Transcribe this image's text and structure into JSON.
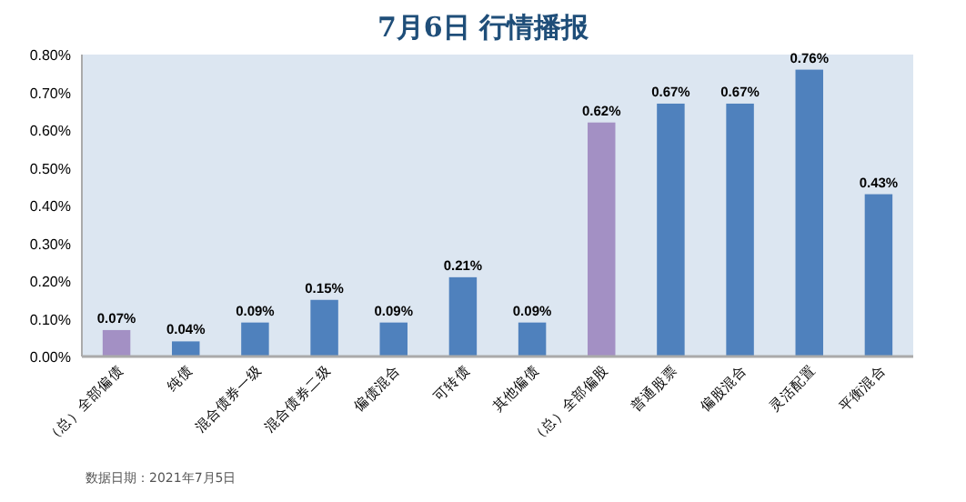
{
  "chart_data": {
    "type": "bar",
    "title": "7月6日  行情播报",
    "categories": [
      "（总）全部偏债",
      "纯债",
      "混合债券一级",
      "混合债券二级",
      "偏债混合",
      "可转债",
      "其他偏债",
      "（总）全部偏股",
      "普通股票",
      "偏股混合",
      "灵活配置",
      "平衡混合"
    ],
    "values": [
      0.07,
      0.04,
      0.09,
      0.15,
      0.09,
      0.21,
      0.09,
      0.62,
      0.67,
      0.67,
      0.76,
      0.43
    ],
    "colors": [
      "#a390c4",
      "#4f81bd",
      "#4f81bd",
      "#4f81bd",
      "#4f81bd",
      "#4f81bd",
      "#4f81bd",
      "#a390c4",
      "#4f81bd",
      "#4f81bd",
      "#4f81bd",
      "#4f81bd"
    ],
    "value_labels": [
      "0.07%",
      "0.04%",
      "0.09%",
      "0.15%",
      "0.09%",
      "0.21%",
      "0.09%",
      "0.62%",
      "0.67%",
      "0.67%",
      "0.76%",
      "0.43%"
    ],
    "ylim": [
      0,
      0.8
    ],
    "yticks": [
      {
        "value": 0,
        "label": "0.00%"
      },
      {
        "value": 0.1,
        "label": "0.10%"
      },
      {
        "value": 0.2,
        "label": "0.20%"
      },
      {
        "value": 0.3,
        "label": "0.30%"
      },
      {
        "value": 0.4,
        "label": "0.40%"
      },
      {
        "value": 0.5,
        "label": "0.50%"
      },
      {
        "value": 0.6,
        "label": "0.60%"
      },
      {
        "value": 0.7,
        "label": "0.70%"
      },
      {
        "value": 0.8,
        "label": "0.80%"
      }
    ],
    "annotations": [
      "数据日期：2021年7月5日"
    ]
  }
}
